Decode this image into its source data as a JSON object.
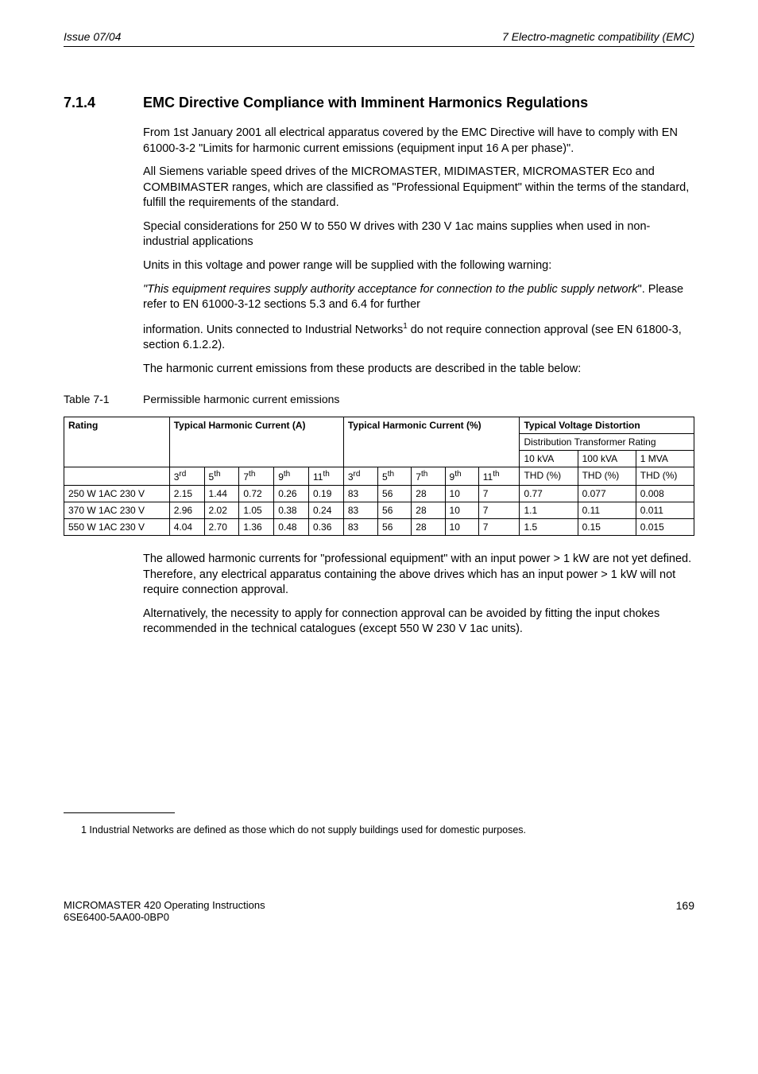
{
  "header": {
    "left": "Issue 07/04",
    "right": "7  Electro-magnetic compatibility (EMC)"
  },
  "section": {
    "number": "7.1.4",
    "title": "EMC Directive Compliance with Imminent Harmonics Regulations"
  },
  "paragraphs": {
    "p1": "From 1st January 2001 all electrical apparatus covered by the EMC Directive will have to comply with EN 61000-3-2 \"Limits for harmonic current emissions (equipment input    16 A per phase)\".",
    "p2": "All Siemens variable speed drives of the MICROMASTER, MIDIMASTER, MICROMASTER Eco and COMBIMASTER ranges, which are classified as \"Professional Equipment\" within the terms of the standard, fulfill the requirements of the standard.",
    "p3": "Special considerations for 250 W to 550 W drives with 230 V 1ac mains supplies when used in non-industrial applications",
    "p4": "Units in this voltage and power range will be supplied with the following warning:",
    "p5_italic": "\"This equipment requires supply authority acceptance for connection to the public supply network",
    "p5_tail": "\".  Please refer to EN 61000-3-12 sections 5.3 and 6.4 for further",
    "p6_lead": "information.  Units connected to Industrial Networks",
    "p6_sup": "1",
    "p6_tail": " do not require connection approval (see EN 61800-3, section 6.1.2.2).",
    "p7": "The harmonic current emissions from these products are described in the table below:"
  },
  "table_caption": {
    "label": "Table 7-1",
    "text": "Permissible harmonic current emissions"
  },
  "table": {
    "head": {
      "rating": "Rating",
      "thc_a": "Typical Harmonic Current (A)",
      "thc_p": "Typical Harmonic Current (%)",
      "tvd": "Typical Voltage Distortion",
      "dtr": "Distribution Transformer Rating",
      "c10": "10 kVA",
      "c100": "100 kVA",
      "c1m": "1 MVA",
      "h3": "3rd",
      "h5": "5th",
      "h7": "7th",
      "h9": "9th",
      "h11": "11th",
      "thd": "THD (%)"
    },
    "ord_labels": {
      "h3_base": "3",
      "h3_sup": "rd",
      "h5_base": "5",
      "h5_sup": "th",
      "h7_base": "7",
      "h7_sup": "th",
      "h9_base": "9",
      "h9_sup": "th",
      "h11_base": "11",
      "h11_sup": "th"
    },
    "rows": [
      {
        "rating": "250 W 1AC 230 V",
        "a3": "2.15",
        "a5": "1.44",
        "a7": "0.72",
        "a9": "0.26",
        "a11": "0.19",
        "p3": "83",
        "p5": "56",
        "p7": "28",
        "p9": "10",
        "p11": "7",
        "t10": "0.77",
        "t100": "0.077",
        "t1m": "0.008"
      },
      {
        "rating": "370 W 1AC 230 V",
        "a3": "2.96",
        "a5": "2.02",
        "a7": "1.05",
        "a9": "0.38",
        "a11": "0.24",
        "p3": "83",
        "p5": "56",
        "p7": "28",
        "p9": "10",
        "p11": "7",
        "t10": "1.1",
        "t100": "0.11",
        "t1m": "0.011"
      },
      {
        "rating": "550 W 1AC 230 V",
        "a3": "4.04",
        "a5": "2.70",
        "a7": "1.36",
        "a9": "0.48",
        "a11": "0.36",
        "p3": "83",
        "p5": "56",
        "p7": "28",
        "p9": "10",
        "p11": "7",
        "t10": "1.5",
        "t100": "0.15",
        "t1m": "0.015"
      }
    ]
  },
  "post_table": {
    "p1": "The allowed harmonic currents for \"professional equipment\" with an input power > 1 kW are not yet defined.  Therefore, any electrical apparatus containing the above drives which has an input power > 1 kW will not require connection approval.",
    "p2": "Alternatively, the necessity to apply for connection approval can be avoided by fitting the input chokes recommended in the technical catalogues (except 550 W 230 V 1ac units)."
  },
  "footnote": {
    "text": "1 Industrial Networks are defined as those which do not supply buildings used for domestic purposes."
  },
  "footer": {
    "line1": "MICROMASTER 420    Operating Instructions",
    "line2": "6SE6400-5AA00-0BP0",
    "page": "169"
  }
}
